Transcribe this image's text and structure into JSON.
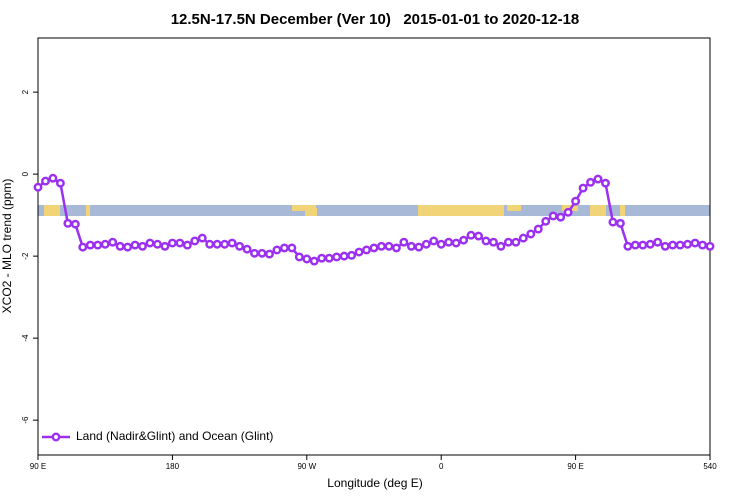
{
  "chart_data": {
    "type": "line",
    "title": "12.5N-17.5N December (Ver 10)   2015-01-01 to 2020-12-18",
    "x_label": "Longitude (deg E)",
    "y_label": "XCO2 - MLO trend (ppm)",
    "x": [
      90,
      95,
      100,
      105,
      110,
      115,
      120,
      125,
      130,
      135,
      140,
      145,
      150,
      155,
      160,
      165,
      170,
      175,
      180,
      185,
      190,
      195,
      200,
      205,
      210,
      215,
      220,
      225,
      230,
      235,
      240,
      245,
      250,
      255,
      260,
      265,
      270,
      275,
      280,
      285,
      290,
      295,
      300,
      305,
      310,
      315,
      320,
      325,
      330,
      335,
      340,
      345,
      350,
      355,
      360,
      365,
      370,
      375,
      380,
      385,
      390,
      395,
      400,
      405,
      410,
      415,
      420,
      425,
      430,
      435,
      440,
      445,
      450,
      455,
      460,
      465,
      470,
      475,
      480,
      485,
      490,
      495,
      500,
      505,
      510,
      515,
      520,
      525,
      530,
      535,
      540
    ],
    "series": [
      {
        "name": "Land (Nadir&Glint) and Ocean (Glint)",
        "color": "#9b30f0",
        "values": [
          -0.32,
          -0.17,
          -0.1,
          -0.22,
          -1.2,
          -1.22,
          -1.78,
          -1.73,
          -1.73,
          -1.71,
          -1.66,
          -1.76,
          -1.78,
          -1.73,
          -1.76,
          -1.68,
          -1.71,
          -1.76,
          -1.68,
          -1.68,
          -1.73,
          -1.63,
          -1.56,
          -1.71,
          -1.71,
          -1.71,
          -1.68,
          -1.76,
          -1.83,
          -1.93,
          -1.93,
          -1.95,
          -1.85,
          -1.8,
          -1.8,
          -2.02,
          -2.07,
          -2.12,
          -2.05,
          -2.05,
          -2.02,
          -2.0,
          -1.98,
          -1.9,
          -1.85,
          -1.8,
          -1.76,
          -1.76,
          -1.8,
          -1.66,
          -1.76,
          -1.78,
          -1.71,
          -1.63,
          -1.71,
          -1.66,
          -1.68,
          -1.61,
          -1.49,
          -1.51,
          -1.63,
          -1.66,
          -1.76,
          -1.66,
          -1.66,
          -1.56,
          -1.46,
          -1.34,
          -1.15,
          -1.02,
          -1.05,
          -0.93,
          -0.66,
          -0.34,
          -0.2,
          -0.12,
          -0.22,
          -1.17,
          -1.2,
          -1.76,
          -1.73,
          -1.73,
          -1.71,
          -1.66,
          -1.76,
          -1.73,
          -1.73,
          -1.71,
          -1.68,
          -1.73,
          -1.76
        ]
      }
    ],
    "xlim": [
      90,
      540
    ],
    "xticks": [
      {
        "value": 90,
        "label": "90 E"
      },
      180,
      {
        "value": 270,
        "label": "90 W"
      },
      {
        "value": 360,
        "label": "0"
      },
      {
        "value": 450,
        "label": "90 E"
      },
      540
    ],
    "ylim": [
      -6.85,
      3.32
    ],
    "yticks": [
      -6,
      -4,
      -2,
      0,
      2
    ],
    "legend": "bottom-left"
  }
}
